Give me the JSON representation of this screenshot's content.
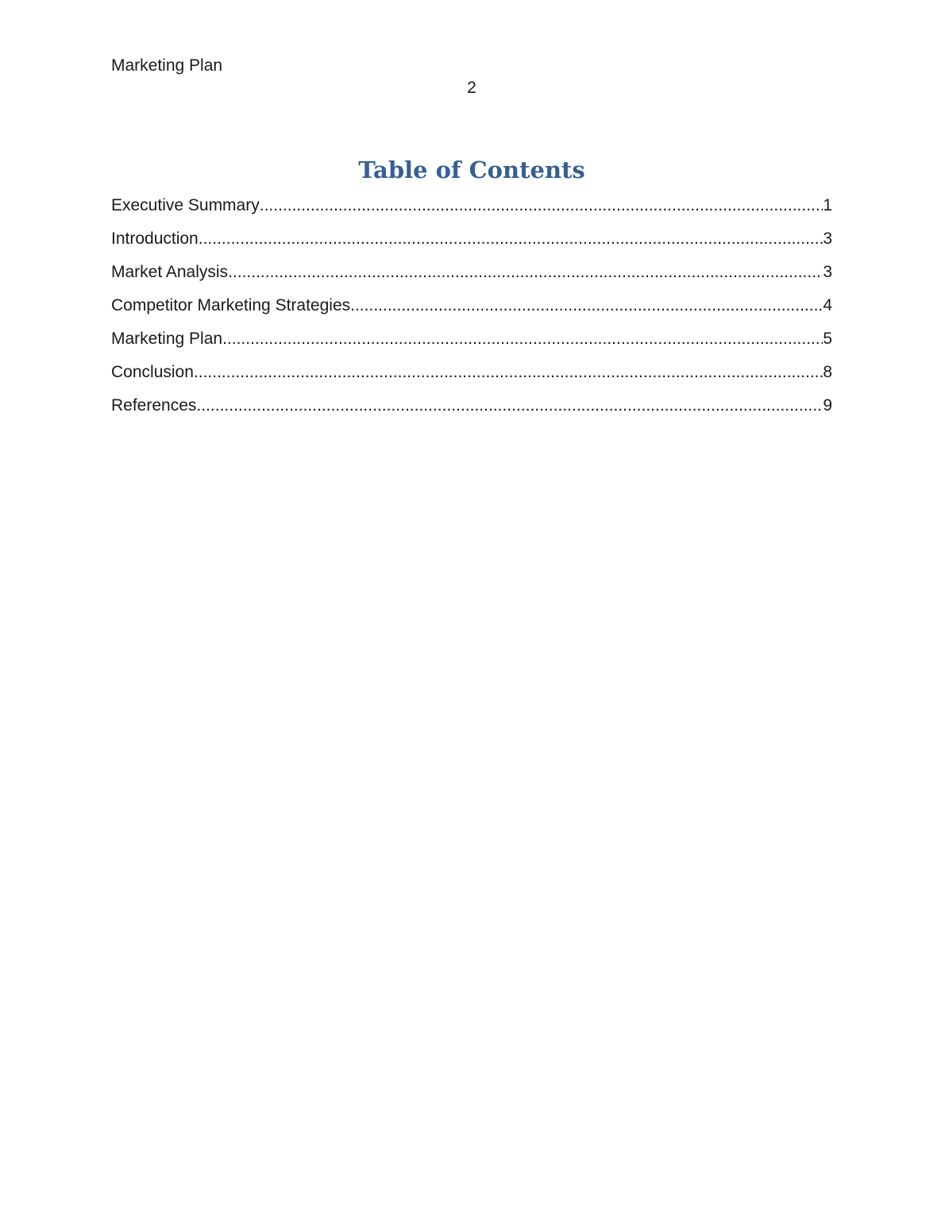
{
  "document": {
    "header": {
      "title": "Marketing Plan",
      "page_number": "2"
    },
    "toc": {
      "heading": "Table of Contents",
      "entries": [
        {
          "label": "Executive Summary",
          "page": "1"
        },
        {
          "label": "Introduction",
          "page": "3"
        },
        {
          "label": "Market Analysis",
          "page": "3"
        },
        {
          "label": "Competitor Marketing Strategies",
          "page": "4"
        },
        {
          "label": "Marketing Plan",
          "page": "5"
        },
        {
          "label": "Conclusion",
          "page": "8"
        },
        {
          "label": "References",
          "page": "9"
        }
      ]
    },
    "colors": {
      "heading_blue": "#365F91",
      "body_text": "#1a1a1a"
    }
  }
}
